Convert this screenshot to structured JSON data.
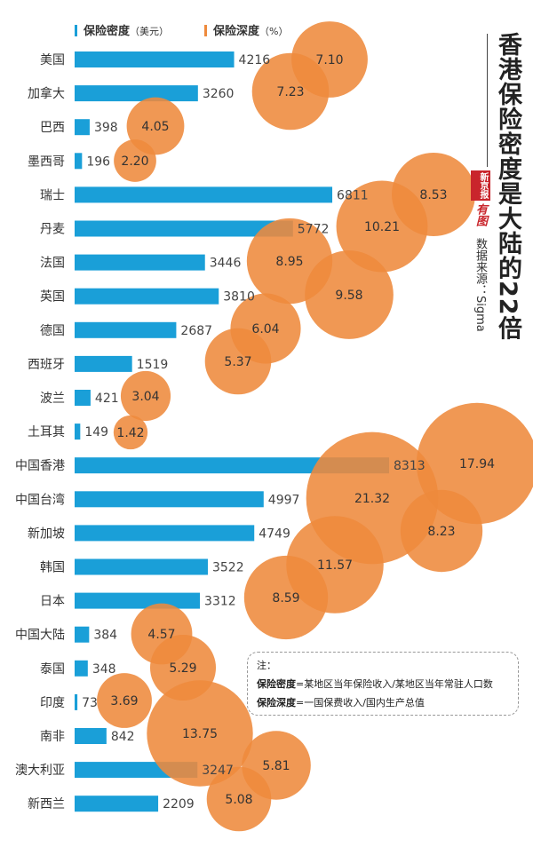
{
  "colors": {
    "bar": "#1a9fd8",
    "bubble": "#ee8a3c",
    "text": "#333333"
  },
  "legend": {
    "density_label": "保险密度",
    "density_unit": "（美元）",
    "depth_label": "保险深度",
    "depth_unit": "（%）"
  },
  "title": "香港保险密度是大陆的22倍",
  "source": "数据来源：Sigma",
  "stamp": {
    "brand": "新京报",
    "script": "有图"
  },
  "note": {
    "heading": "注：",
    "density_term": "保险密度",
    "density_def": "=某地区当年保险收入/某地区当年常驻人口数",
    "depth_term": "保险深度",
    "depth_def": "=一国保费收入/国内生产总值"
  },
  "chart_data": {
    "type": "bar",
    "title": "香港保险密度是大陆的22倍",
    "orientation": "horizontal",
    "xlim": [
      0,
      9000
    ],
    "categories": [
      "美国",
      "加拿大",
      "巴西",
      "墨西哥",
      "瑞士",
      "丹麦",
      "法国",
      "英国",
      "德国",
      "西班牙",
      "波兰",
      "土耳其",
      "中国香港",
      "中国台湾",
      "新加坡",
      "韩国",
      "日本",
      "中国大陆",
      "泰国",
      "印度",
      "南非",
      "澳大利亚",
      "新西兰"
    ],
    "series": [
      {
        "name": "保险密度（美元）",
        "type": "bar",
        "values": [
          4216,
          3260,
          398,
          196,
          6811,
          5772,
          3446,
          3810,
          2687,
          1519,
          421,
          149,
          8313,
          4997,
          4749,
          3522,
          3312,
          384,
          348,
          73,
          842,
          3247,
          2209
        ]
      },
      {
        "name": "保险深度（%）",
        "type": "bubble",
        "values": [
          7.1,
          7.23,
          4.05,
          2.2,
          8.53,
          10.21,
          8.95,
          9.58,
          6.04,
          5.37,
          3.04,
          1.42,
          17.94,
          21.32,
          8.23,
          11.57,
          8.59,
          4.57,
          5.29,
          3.69,
          13.75,
          5.81,
          5.08
        ],
        "labels": [
          "7.10",
          "7.23",
          "4.05",
          "2.20",
          "8.53",
          "10.21",
          "8.95",
          "9.58",
          "6.04",
          "5.37",
          "3.04",
          "1.42",
          "17.94",
          "21.32",
          "8.23",
          "11.57",
          "8.59",
          "4.57",
          "5.29",
          "3.69",
          "13.75",
          "5.81",
          "5.08"
        ]
      }
    ]
  }
}
